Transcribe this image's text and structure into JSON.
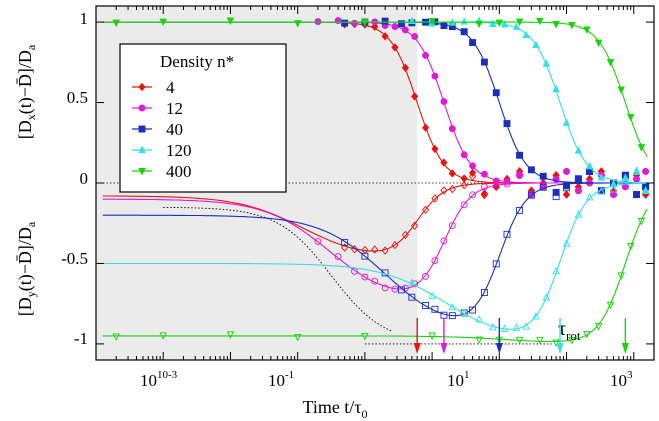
{
  "chart_data": {
    "type": "scatter",
    "xscale": "log",
    "xlim": [
      1e-05,
      2000
    ],
    "ylim": [
      -1.1,
      1.1
    ],
    "xlabel": "Time t/τ0",
    "ylabel_top": "[Dx(t)−D̄]/Da",
    "ylabel_bottom": "[Dy(t)−D̄]/Da",
    "x_tick_labels": [
      "10-3",
      "10-1",
      "101",
      "103"
    ],
    "y_tick_labels": [
      "1",
      "0.5",
      "0",
      "-0.5",
      "-1"
    ],
    "shaded_region_x": [
      1e-05,
      0.6
    ],
    "legend_title": "Density n*",
    "legend_position": "upper-left",
    "tau_label": "τrot",
    "series": [
      {
        "name": "4",
        "color": "#e8140c",
        "marker": "diamond",
        "tau": 0.6,
        "x_marks": [
          0.05,
          0.07,
          0.1,
          0.14,
          0.2,
          0.28,
          0.4,
          0.55,
          0.8,
          1.1,
          1.5,
          2,
          3,
          4,
          6,
          9,
          13,
          20,
          30,
          45,
          70,
          100,
          150,
          220,
          330,
          500,
          750,
          1100,
          1500
        ]
      },
      {
        "name": "12",
        "color": "#e01ad6",
        "marker": "circle",
        "tau": 1.5,
        "x_marks": [
          0.02,
          0.04,
          0.07,
          0.1,
          0.14,
          0.2,
          0.28,
          0.4,
          0.55,
          0.8,
          1.1,
          1.5,
          2,
          3,
          4,
          6,
          9,
          13,
          20,
          30,
          45,
          70,
          100,
          150,
          220,
          330,
          500,
          750,
          1100,
          1500
        ]
      },
      {
        "name": "40",
        "color": "#1a2fbf",
        "marker": "square",
        "tau": 10,
        "x_marks": [
          0.05,
          0.1,
          0.2,
          0.35,
          0.5,
          0.8,
          1.1,
          1.5,
          2,
          3,
          4,
          6,
          9,
          13,
          20,
          30,
          45,
          70,
          100,
          150,
          220,
          330,
          500,
          750,
          1100,
          1500
        ]
      },
      {
        "name": "120",
        "color": "#33e0e8",
        "marker": "triangle-up",
        "tau": 80,
        "x_marks": [
          0.5,
          1,
          2,
          3,
          5,
          8,
          12,
          18,
          25,
          35,
          50,
          70,
          100,
          150,
          220,
          330,
          500,
          750,
          1100,
          1500
        ]
      },
      {
        "name": "400",
        "color": "#19d40a",
        "marker": "triangle-down",
        "tau": 750,
        "x_marks": [
          2e-05,
          0.0001,
          0.001,
          0.01,
          0.1,
          1,
          5,
          10,
          20,
          40,
          70,
          120,
          200,
          300,
          450,
          650,
          900,
          1300
        ]
      }
    ]
  }
}
